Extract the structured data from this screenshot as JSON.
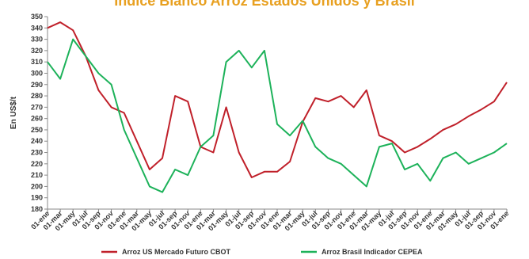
{
  "chart_data": {
    "type": "line",
    "title": "Índice Blanco Arroz Estados Unidos y Brasil",
    "ylabel": "En US$/t",
    "xlabel": "",
    "ylim": [
      180,
      350
    ],
    "yticks": [
      180,
      190,
      200,
      210,
      220,
      230,
      240,
      250,
      260,
      270,
      280,
      290,
      300,
      310,
      320,
      330,
      340,
      350
    ],
    "grid": false,
    "legend_position": "bottom",
    "categories": [
      "01-ene",
      "01-mar",
      "01-may",
      "01-jul",
      "01-sep",
      "01-nov",
      "01-ene",
      "01-mar",
      "01-may",
      "01-jul",
      "01-sep",
      "01-nov",
      "01-ene",
      "01-mar",
      "01-may",
      "01-jul",
      "01-sep",
      "01-nov",
      "01-ene",
      "01-mar",
      "01-may",
      "01-jul",
      "01-sep",
      "01-nov",
      "01-ene",
      "01-mar",
      "01-may",
      "01-jul",
      "01-sep",
      "01-nov",
      "01-ene",
      "01-mar",
      "01-may",
      "01-jul",
      "01-sep",
      "01-nov",
      "01-ene"
    ],
    "series": [
      {
        "name": "Arroz US Mercado Futuro CBOT",
        "color": "#c0202a",
        "values": [
          340,
          345,
          338,
          315,
          285,
          270,
          265,
          240,
          215,
          225,
          280,
          275,
          235,
          230,
          270,
          230,
          208,
          213,
          213,
          222,
          257,
          278,
          275,
          280,
          270,
          285,
          245,
          240,
          230,
          235,
          242,
          250,
          255,
          262,
          268,
          275,
          292
        ]
      },
      {
        "name": "Arroz Brasil Indicador CEPEA",
        "color": "#1db25a",
        "values": [
          310,
          295,
          330,
          315,
          300,
          290,
          250,
          225,
          200,
          195,
          215,
          210,
          235,
          245,
          310,
          320,
          305,
          320,
          255,
          245,
          258,
          235,
          225,
          220,
          210,
          200,
          235,
          238,
          215,
          220,
          205,
          225,
          230,
          220,
          225,
          230,
          238
        ]
      }
    ]
  }
}
